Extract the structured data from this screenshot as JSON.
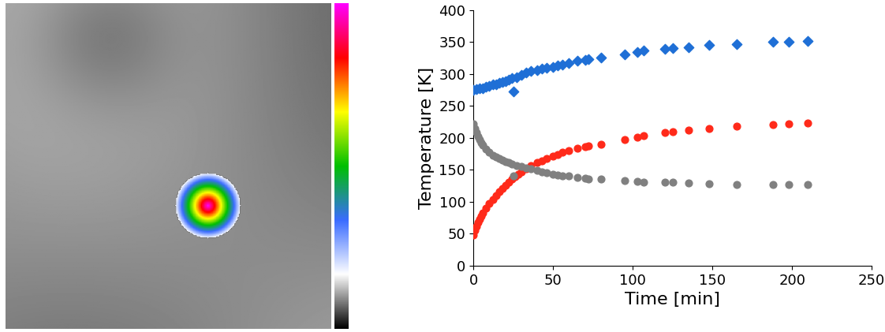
{
  "chart_data": {
    "type": "scatter",
    "xlabel": "Time [min]",
    "ylabel": "Temperature [K]",
    "xlim": [
      0,
      250
    ],
    "xticks": [
      0,
      50,
      100,
      150,
      200,
      250
    ],
    "ylim": [
      0,
      400
    ],
    "yticks": [
      0,
      50,
      100,
      150,
      200,
      250,
      300,
      350,
      400
    ],
    "grid": false,
    "series": [
      {
        "color": "#1f6fd6",
        "marker": "diamond",
        "x": [
          0,
          2,
          4,
          6,
          8,
          10,
          12,
          14,
          16,
          18,
          20,
          22,
          24,
          25,
          27,
          30,
          33,
          36,
          40,
          43,
          46,
          50,
          53,
          56,
          60,
          65,
          70,
          72,
          80,
          95,
          103,
          107,
          120,
          125,
          135,
          148,
          165,
          188,
          198,
          210
        ],
        "values": [
          275,
          276,
          277,
          278,
          280,
          281,
          283,
          284,
          286,
          287,
          289,
          291,
          293,
          273,
          295,
          298,
          302,
          304,
          306,
          308,
          309,
          311,
          313,
          315,
          317,
          320,
          322,
          323,
          326,
          331,
          334,
          336,
          339,
          340,
          342,
          345,
          347,
          350,
          350,
          351
        ]
      },
      {
        "color": "#ff2a1a",
        "marker": "circle",
        "x": [
          0,
          1,
          2,
          3,
          4,
          5,
          6,
          8,
          10,
          12,
          14,
          16,
          18,
          20,
          22,
          24,
          26,
          28,
          30,
          33,
          36,
          40,
          43,
          46,
          50,
          53,
          56,
          60,
          65,
          70,
          72,
          80,
          95,
          103,
          107,
          120,
          125,
          135,
          148,
          165,
          188,
          198,
          210
        ],
        "values": [
          48,
          55,
          62,
          68,
          73,
          78,
          83,
          90,
          97,
          104,
          110,
          116,
          121,
          126,
          131,
          135,
          139,
          143,
          147,
          152,
          156,
          161,
          164,
          167,
          171,
          174,
          177,
          180,
          183,
          186,
          187,
          190,
          197,
          201,
          203,
          208,
          210,
          212,
          215,
          218,
          221,
          222,
          223
        ]
      },
      {
        "color": "#808080",
        "marker": "circle",
        "x": [
          0,
          1,
          2,
          3,
          4,
          5,
          6,
          8,
          10,
          12,
          14,
          16,
          18,
          20,
          22,
          24,
          25,
          27,
          30,
          33,
          36,
          40,
          43,
          46,
          50,
          53,
          56,
          60,
          65,
          70,
          72,
          80,
          95,
          103,
          107,
          120,
          125,
          135,
          148,
          165,
          188,
          198,
          210
        ],
        "values": [
          222,
          215,
          208,
          202,
          197,
          192,
          188,
          182,
          177,
          173,
          170,
          167,
          165,
          163,
          161,
          159,
          140,
          157,
          155,
          153,
          151,
          149,
          147,
          145,
          143,
          142,
          141,
          140,
          138,
          137,
          136,
          135,
          133,
          132,
          131,
          130,
          130,
          129,
          128,
          127,
          127,
          127,
          127
        ]
      }
    ]
  }
}
